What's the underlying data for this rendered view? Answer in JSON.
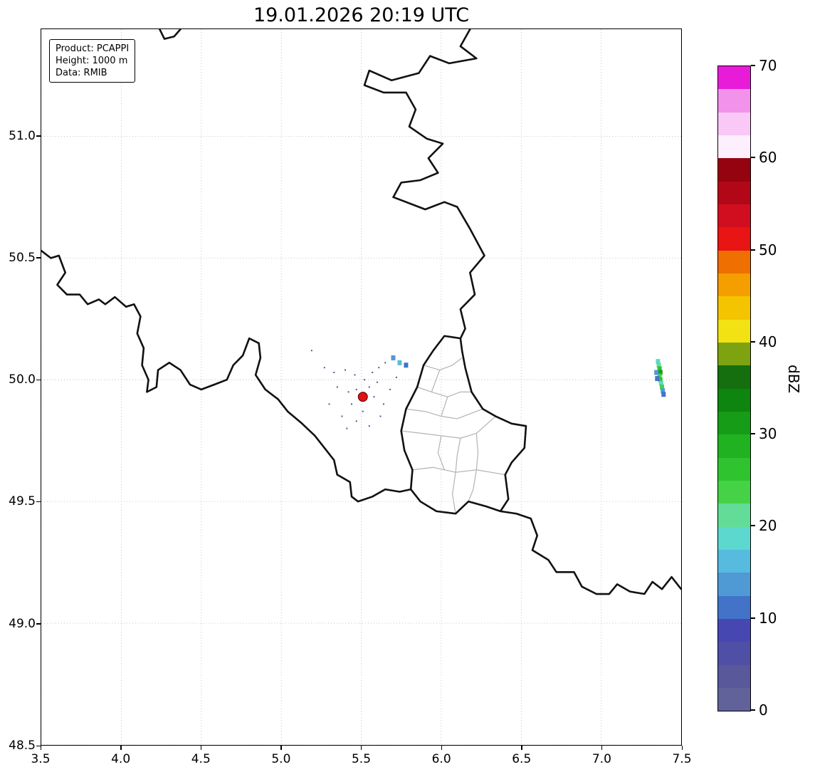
{
  "title": "19.01.2026 20:19 UTC",
  "info_box": {
    "lines": [
      "Product: PCAPPI",
      "Height: 1000 m",
      "Data: RMIB"
    ]
  },
  "chart_data": {
    "type": "heatmap",
    "subtype": "weather-radar-reflectivity-map",
    "title": "19.01.2026 20:19 UTC",
    "xlabel": "",
    "ylabel": "",
    "xlim": [
      3.5,
      7.5
    ],
    "ylim": [
      48.5,
      51.44
    ],
    "x_ticks": [
      3.5,
      4.0,
      4.5,
      5.0,
      5.5,
      6.0,
      6.5,
      7.0,
      7.5
    ],
    "y_ticks": [
      48.5,
      49.0,
      49.5,
      50.0,
      50.5,
      51.0
    ],
    "grid": true,
    "legend_position": "right-colorbar",
    "colorbar": {
      "label": "dBZ",
      "min": 0,
      "max": 70,
      "step": 2.5,
      "ticks": [
        0,
        10,
        20,
        30,
        40,
        50,
        60,
        70
      ],
      "colors": [
        "#62629a",
        "#58589b",
        "#4f4fa5",
        "#4747b2",
        "#4273c8",
        "#4f99d5",
        "#57bbdf",
        "#5cd8cf",
        "#62dc96",
        "#46d246",
        "#2fc42f",
        "#20b220",
        "#169c16",
        "#0e850e",
        "#156f0e",
        "#7da310",
        "#f2e214",
        "#f4c400",
        "#f49e00",
        "#ef6f00",
        "#e91414",
        "#d10e1f",
        "#b20717",
        "#94030f",
        "#fdeffd",
        "#f9c8f6",
        "#f292eb",
        "#e81bd9"
      ]
    },
    "radar_site": {
      "lon": 5.51,
      "lat": 49.93
    },
    "echoes": {
      "cells": [
        [
          7.355,
          50.075,
          18
        ],
        [
          7.36,
          50.06,
          22
        ],
        [
          7.365,
          50.045,
          27
        ],
        [
          7.37,
          50.03,
          31
        ],
        [
          7.365,
          50.015,
          23
        ],
        [
          7.37,
          50.0,
          27
        ],
        [
          7.375,
          49.985,
          19
        ],
        [
          7.38,
          49.97,
          23
        ],
        [
          7.385,
          49.955,
          14
        ],
        [
          7.39,
          49.94,
          11
        ],
        [
          7.345,
          50.03,
          14
        ],
        [
          7.35,
          50.005,
          12
        ],
        [
          5.7,
          50.09,
          13
        ],
        [
          5.74,
          50.07,
          16
        ],
        [
          5.78,
          50.06,
          12
        ]
      ],
      "speckles": [
        [
          5.19,
          50.12
        ],
        [
          5.27,
          50.05
        ],
        [
          5.33,
          50.03
        ],
        [
          5.4,
          50.04
        ],
        [
          5.46,
          50.02
        ],
        [
          5.52,
          50.0
        ],
        [
          5.57,
          50.03
        ],
        [
          5.61,
          50.05
        ],
        [
          5.65,
          50.07
        ],
        [
          5.35,
          49.97
        ],
        [
          5.42,
          49.95
        ],
        [
          5.47,
          49.96
        ],
        [
          5.55,
          49.97
        ],
        [
          5.6,
          49.99
        ],
        [
          5.3,
          49.9
        ],
        [
          5.44,
          49.9
        ],
        [
          5.58,
          49.93
        ],
        [
          5.64,
          49.9
        ],
        [
          5.38,
          49.85
        ],
        [
          5.47,
          49.83
        ],
        [
          5.55,
          49.81
        ],
        [
          5.62,
          49.85
        ],
        [
          5.51,
          49.87
        ],
        [
          5.41,
          49.8
        ],
        [
          5.68,
          49.96
        ],
        [
          5.72,
          50.01
        ]
      ]
    },
    "borders": {
      "country": [
        [
          [
            6.18,
            51.44
          ],
          [
            6.12,
            51.37
          ],
          [
            6.22,
            51.32
          ],
          [
            6.05,
            51.3
          ],
          [
            5.93,
            51.33
          ],
          [
            5.86,
            51.26
          ],
          [
            5.69,
            51.23
          ],
          [
            5.55,
            51.27
          ],
          [
            5.52,
            51.21
          ],
          [
            5.64,
            51.18
          ],
          [
            5.78,
            51.18
          ],
          [
            5.84,
            51.11
          ],
          [
            5.8,
            51.04
          ],
          [
            5.91,
            50.99
          ],
          [
            6.01,
            50.97
          ],
          [
            5.92,
            50.91
          ],
          [
            5.98,
            50.85
          ],
          [
            5.87,
            50.82
          ],
          [
            5.75,
            50.81
          ],
          [
            5.7,
            50.75
          ],
          [
            5.9,
            50.7
          ],
          [
            6.02,
            50.73
          ],
          [
            6.1,
            50.71
          ],
          [
            6.18,
            50.62
          ],
          [
            6.27,
            50.51
          ],
          [
            6.18,
            50.44
          ],
          [
            6.21,
            50.35
          ],
          [
            6.12,
            50.29
          ],
          [
            6.15,
            50.21
          ],
          [
            6.12,
            50.17
          ]
        ],
        [
          [
            4.24,
            51.44
          ],
          [
            4.27,
            51.4
          ],
          [
            4.33,
            51.41
          ],
          [
            4.37,
            51.44
          ]
        ],
        [
          [
            3.5,
            50.53
          ],
          [
            3.56,
            50.5
          ],
          [
            3.61,
            50.51
          ],
          [
            3.65,
            50.44
          ],
          [
            3.6,
            50.39
          ],
          [
            3.66,
            50.35
          ],
          [
            3.74,
            50.35
          ],
          [
            3.79,
            50.31
          ],
          [
            3.86,
            50.33
          ],
          [
            3.9,
            50.31
          ],
          [
            3.96,
            50.34
          ],
          [
            4.03,
            50.3
          ],
          [
            4.08,
            50.31
          ],
          [
            4.12,
            50.26
          ],
          [
            4.1,
            50.19
          ],
          [
            4.14,
            50.13
          ],
          [
            4.13,
            50.06
          ],
          [
            4.17,
            50.0
          ],
          [
            4.16,
            49.95
          ],
          [
            4.22,
            49.97
          ],
          [
            4.23,
            50.04
          ],
          [
            4.3,
            50.07
          ],
          [
            4.37,
            50.04
          ],
          [
            4.43,
            49.98
          ],
          [
            4.5,
            49.96
          ],
          [
            4.58,
            49.98
          ],
          [
            4.66,
            50.0
          ],
          [
            4.7,
            50.06
          ],
          [
            4.76,
            50.1
          ],
          [
            4.8,
            50.17
          ],
          [
            4.86,
            50.15
          ],
          [
            4.87,
            50.09
          ],
          [
            4.84,
            50.02
          ],
          [
            4.9,
            49.96
          ],
          [
            4.98,
            49.92
          ],
          [
            5.04,
            49.87
          ],
          [
            5.13,
            49.82
          ],
          [
            5.21,
            49.77
          ],
          [
            5.27,
            49.72
          ],
          [
            5.33,
            49.67
          ],
          [
            5.35,
            49.61
          ],
          [
            5.43,
            49.58
          ],
          [
            5.44,
            49.52
          ],
          [
            5.48,
            49.5
          ],
          [
            5.57,
            49.52
          ],
          [
            5.65,
            49.55
          ],
          [
            5.74,
            49.54
          ],
          [
            5.81,
            49.55
          ]
        ],
        [
          [
            6.12,
            50.17
          ],
          [
            6.02,
            50.18
          ],
          [
            5.95,
            50.12
          ],
          [
            5.89,
            50.06
          ],
          [
            5.85,
            49.97
          ],
          [
            5.78,
            49.88
          ],
          [
            5.75,
            49.79
          ],
          [
            5.77,
            49.71
          ],
          [
            5.82,
            49.63
          ],
          [
            5.81,
            49.55
          ],
          [
            5.87,
            49.5
          ],
          [
            5.97,
            49.46
          ],
          [
            6.09,
            49.45
          ],
          [
            6.17,
            49.5
          ],
          [
            6.28,
            49.48
          ],
          [
            6.37,
            49.46
          ],
          [
            6.42,
            49.51
          ],
          [
            6.4,
            49.61
          ],
          [
            6.44,
            49.66
          ],
          [
            6.52,
            49.72
          ],
          [
            6.53,
            49.81
          ],
          [
            6.44,
            49.82
          ],
          [
            6.34,
            49.85
          ],
          [
            6.26,
            49.88
          ],
          [
            6.19,
            49.95
          ],
          [
            6.15,
            50.05
          ],
          [
            6.13,
            50.12
          ],
          [
            6.12,
            50.17
          ]
        ],
        [
          [
            6.37,
            49.46
          ],
          [
            6.47,
            49.45
          ],
          [
            6.56,
            49.43
          ],
          [
            6.6,
            49.36
          ],
          [
            6.57,
            49.3
          ],
          [
            6.67,
            49.26
          ],
          [
            6.72,
            49.21
          ],
          [
            6.83,
            49.21
          ],
          [
            6.88,
            49.15
          ],
          [
            6.97,
            49.12
          ],
          [
            7.05,
            49.12
          ],
          [
            7.1,
            49.16
          ],
          [
            7.18,
            49.13
          ],
          [
            7.27,
            49.12
          ],
          [
            7.32,
            49.17
          ],
          [
            7.38,
            49.14
          ],
          [
            7.44,
            49.19
          ],
          [
            7.5,
            49.14
          ]
        ]
      ],
      "districts": [
        [
          [
            5.89,
            50.06
          ],
          [
            5.99,
            50.04
          ],
          [
            6.07,
            50.06
          ],
          [
            6.13,
            50.09
          ]
        ],
        [
          [
            5.85,
            49.97
          ],
          [
            5.94,
            49.95
          ],
          [
            6.04,
            49.93
          ],
          [
            6.12,
            49.95
          ],
          [
            6.19,
            49.95
          ]
        ],
        [
          [
            5.78,
            49.88
          ],
          [
            5.9,
            49.87
          ],
          [
            6.0,
            49.85
          ],
          [
            6.1,
            49.84
          ],
          [
            6.26,
            49.88
          ]
        ],
        [
          [
            5.75,
            49.79
          ],
          [
            5.88,
            49.78
          ],
          [
            6.0,
            49.77
          ],
          [
            6.12,
            49.76
          ],
          [
            6.22,
            49.78
          ],
          [
            6.34,
            49.85
          ]
        ],
        [
          [
            5.82,
            49.63
          ],
          [
            5.95,
            49.64
          ],
          [
            6.09,
            49.62
          ],
          [
            6.22,
            49.63
          ],
          [
            6.4,
            49.61
          ]
        ],
        [
          [
            5.99,
            50.04
          ],
          [
            5.94,
            49.95
          ]
        ],
        [
          [
            6.04,
            49.93
          ],
          [
            6.0,
            49.85
          ]
        ],
        [
          [
            6.0,
            49.77
          ],
          [
            5.98,
            49.7
          ],
          [
            6.02,
            49.63
          ]
        ],
        [
          [
            6.12,
            49.76
          ],
          [
            6.1,
            49.69
          ],
          [
            6.09,
            49.62
          ]
        ],
        [
          [
            6.22,
            49.78
          ],
          [
            6.23,
            49.7
          ],
          [
            6.22,
            49.63
          ]
        ],
        [
          [
            6.09,
            49.62
          ],
          [
            6.07,
            49.53
          ],
          [
            6.09,
            49.45
          ]
        ],
        [
          [
            6.22,
            49.63
          ],
          [
            6.2,
            49.55
          ],
          [
            6.17,
            49.5
          ]
        ]
      ]
    },
    "style": {
      "grid_color": "#bbbbbb",
      "border_color": "#111111",
      "district_color": "#b3b3b3",
      "speckle_color": "#56568f",
      "radar_dot_color": "#e01212",
      "background": "#ffffff"
    }
  }
}
